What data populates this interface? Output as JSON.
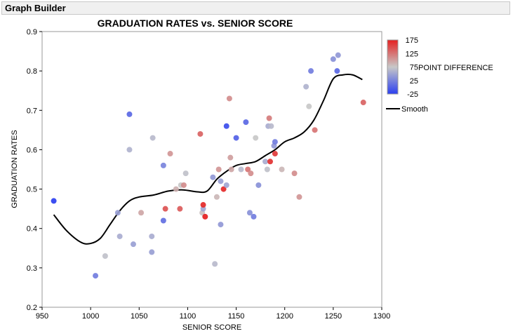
{
  "window": {
    "title": "Graph Builder"
  },
  "chart_data": {
    "type": "scatter",
    "title": "GRADUATION RATES vs. SENIOR SCORE",
    "xlabel": "SENIOR SCORE",
    "ylabel": "GRADUATION RATES",
    "xlim": [
      950,
      1300
    ],
    "ylim": [
      0.2,
      0.9
    ],
    "xticks": [
      950,
      1000,
      1050,
      1100,
      1150,
      1200,
      1250,
      1300
    ],
    "yticks": [
      0.2,
      0.3,
      0.4,
      0.5,
      0.6,
      0.7,
      0.8,
      0.9
    ],
    "color_variable": {
      "name": "POINT DIFFERENCE",
      "min": -25,
      "max": 175,
      "ticks": [
        "175",
        "125",
        "75",
        "25",
        "-25"
      ],
      "colors": {
        "low": "#2b3ff0",
        "mid": "#c8c8c8",
        "high": "#e52020"
      }
    },
    "legend": {
      "placement": "right",
      "smooth_label": "Smooth"
    },
    "points": [
      {
        "x": 962,
        "y": 0.47,
        "c": -25
      },
      {
        "x": 1005,
        "y": 0.28,
        "c": 20
      },
      {
        "x": 1015,
        "y": 0.33,
        "c": 70
      },
      {
        "x": 1028,
        "y": 0.44,
        "c": 45
      },
      {
        "x": 1030,
        "y": 0.38,
        "c": 55
      },
      {
        "x": 1040,
        "y": 0.69,
        "c": 5
      },
      {
        "x": 1040,
        "y": 0.6,
        "c": 60
      },
      {
        "x": 1044,
        "y": 0.36,
        "c": 45
      },
      {
        "x": 1052,
        "y": 0.44,
        "c": 95
      },
      {
        "x": 1063,
        "y": 0.38,
        "c": 55
      },
      {
        "x": 1063,
        "y": 0.34,
        "c": 45
      },
      {
        "x": 1064,
        "y": 0.63,
        "c": 65
      },
      {
        "x": 1075,
        "y": 0.56,
        "c": 25
      },
      {
        "x": 1075,
        "y": 0.42,
        "c": 10
      },
      {
        "x": 1077,
        "y": 0.45,
        "c": 145
      },
      {
        "x": 1082,
        "y": 0.59,
        "c": 105
      },
      {
        "x": 1088,
        "y": 0.5,
        "c": 90
      },
      {
        "x": 1092,
        "y": 0.45,
        "c": 140
      },
      {
        "x": 1093,
        "y": 0.51,
        "c": 75
      },
      {
        "x": 1096,
        "y": 0.51,
        "c": 110
      },
      {
        "x": 1098,
        "y": 0.54,
        "c": 70
      },
      {
        "x": 1113,
        "y": 0.64,
        "c": 135
      },
      {
        "x": 1115,
        "y": 0.44,
        "c": 80
      },
      {
        "x": 1116,
        "y": 0.45,
        "c": 50
      },
      {
        "x": 1116,
        "y": 0.46,
        "c": 170
      },
      {
        "x": 1118,
        "y": 0.43,
        "c": 175
      },
      {
        "x": 1126,
        "y": 0.53,
        "c": 40
      },
      {
        "x": 1128,
        "y": 0.31,
        "c": 65
      },
      {
        "x": 1130,
        "y": 0.48,
        "c": 85
      },
      {
        "x": 1132,
        "y": 0.55,
        "c": 105
      },
      {
        "x": 1134,
        "y": 0.52,
        "c": 45
      },
      {
        "x": 1134,
        "y": 0.41,
        "c": 40
      },
      {
        "x": 1137,
        "y": 0.5,
        "c": 170
      },
      {
        "x": 1140,
        "y": 0.51,
        "c": 50
      },
      {
        "x": 1140,
        "y": 0.66,
        "c": -15
      },
      {
        "x": 1143,
        "y": 0.73,
        "c": 110
      },
      {
        "x": 1144,
        "y": 0.58,
        "c": 100
      },
      {
        "x": 1145,
        "y": 0.55,
        "c": 95
      },
      {
        "x": 1150,
        "y": 0.63,
        "c": 0
      },
      {
        "x": 1155,
        "y": 0.55,
        "c": 65
      },
      {
        "x": 1160,
        "y": 0.67,
        "c": 5
      },
      {
        "x": 1162,
        "y": 0.55,
        "c": 125
      },
      {
        "x": 1164,
        "y": 0.44,
        "c": 35
      },
      {
        "x": 1165,
        "y": 0.54,
        "c": 110
      },
      {
        "x": 1168,
        "y": 0.43,
        "c": 20
      },
      {
        "x": 1170,
        "y": 0.63,
        "c": 75
      },
      {
        "x": 1173,
        "y": 0.51,
        "c": 35
      },
      {
        "x": 1180,
        "y": 0.57,
        "c": 55
      },
      {
        "x": 1182,
        "y": 0.55,
        "c": 70
      },
      {
        "x": 1183,
        "y": 0.66,
        "c": 55
      },
      {
        "x": 1184,
        "y": 0.68,
        "c": 120
      },
      {
        "x": 1185,
        "y": 0.57,
        "c": 165
      },
      {
        "x": 1186,
        "y": 0.66,
        "c": 65
      },
      {
        "x": 1189,
        "y": 0.61,
        "c": 40
      },
      {
        "x": 1190,
        "y": 0.62,
        "c": 20
      },
      {
        "x": 1190,
        "y": 0.59,
        "c": 160
      },
      {
        "x": 1197,
        "y": 0.55,
        "c": 85
      },
      {
        "x": 1210,
        "y": 0.54,
        "c": 110
      },
      {
        "x": 1215,
        "y": 0.48,
        "c": 105
      },
      {
        "x": 1222,
        "y": 0.76,
        "c": 60
      },
      {
        "x": 1225,
        "y": 0.71,
        "c": 75
      },
      {
        "x": 1227,
        "y": 0.8,
        "c": 20
      },
      {
        "x": 1231,
        "y": 0.65,
        "c": 125
      },
      {
        "x": 1250,
        "y": 0.83,
        "c": 35
      },
      {
        "x": 1254,
        "y": 0.8,
        "c": 5
      },
      {
        "x": 1255,
        "y": 0.84,
        "c": 40
      },
      {
        "x": 1281,
        "y": 0.72,
        "c": 135
      }
    ],
    "smooth": {
      "name": "Smooth",
      "x": [
        962,
        975,
        990,
        1000,
        1010,
        1020,
        1030,
        1040,
        1050,
        1065,
        1080,
        1095,
        1110,
        1120,
        1130,
        1140,
        1150,
        1160,
        1170,
        1180,
        1190,
        1200,
        1210,
        1220,
        1230,
        1240,
        1250,
        1260,
        1270,
        1280
      ],
      "y": [
        0.435,
        0.395,
        0.365,
        0.362,
        0.375,
        0.41,
        0.445,
        0.47,
        0.48,
        0.485,
        0.495,
        0.498,
        0.493,
        0.495,
        0.525,
        0.545,
        0.56,
        0.565,
        0.57,
        0.585,
        0.6,
        0.62,
        0.63,
        0.645,
        0.675,
        0.725,
        0.78,
        0.79,
        0.79,
        0.778
      ]
    }
  }
}
